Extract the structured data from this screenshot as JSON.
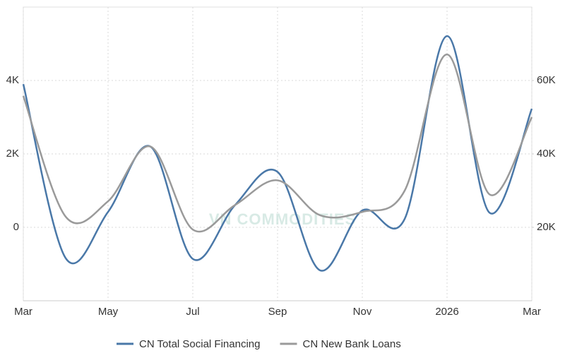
{
  "chart_data": {
    "type": "line",
    "watermark": "VN COMMODITIES",
    "categories": [
      "Mar",
      null,
      "May",
      null,
      "Jul",
      null,
      "Sep",
      null,
      "Nov",
      null,
      "2026",
      null,
      "Mar"
    ],
    "series": [
      {
        "name": "CN Total Social Financing",
        "color": "#4a78a8",
        "axis": "y",
        "values": [
          3900,
          -840,
          420,
          2200,
          -860,
          610,
          1510,
          -1170,
          460,
          230,
          5210,
          400,
          3230
        ]
      },
      {
        "name": "CN New Bank Loans",
        "color": "#9a9a9a",
        "axis": "y2",
        "values": [
          55800,
          22900,
          27100,
          42000,
          19400,
          26100,
          32800,
          23300,
          24200,
          30000,
          67100,
          29000,
          50000
        ]
      }
    ],
    "ylim": [
      -2000,
      6000
    ],
    "yticks": [
      0,
      {
        "value": 2000,
        "label": "2K"
      },
      {
        "value": 4000,
        "label": "4K"
      }
    ],
    "y2lim": [
      0,
      80000
    ],
    "y2ticks": [
      {
        "value": 20000,
        "label": "20K"
      },
      {
        "value": 40000,
        "label": "40K"
      },
      {
        "value": 60000,
        "label": "60K"
      }
    ],
    "grid": true,
    "legend": "bottom"
  }
}
